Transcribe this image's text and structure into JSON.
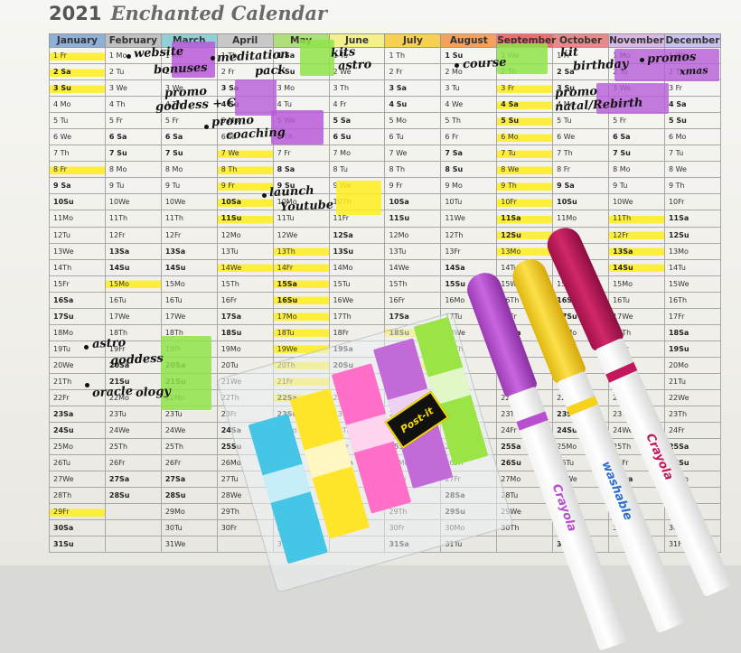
{
  "title": {
    "year": "2021",
    "name": "Enchanted Calendar"
  },
  "months": [
    {
      "label": "January",
      "color": "#8fb0d8"
    },
    {
      "label": "February",
      "color": "#c0c0c0"
    },
    {
      "label": "March",
      "color": "#8fd0d8"
    },
    {
      "label": "April",
      "color": "#c8c8c8"
    },
    {
      "label": "May",
      "color": "#aee07a"
    },
    {
      "label": "June",
      "color": "#f4f08a"
    },
    {
      "label": "July",
      "color": "#f7cf52"
    },
    {
      "label": "August",
      "color": "#f3a15c"
    },
    {
      "label": "September",
      "color": "#ef6d6d"
    },
    {
      "label": "October",
      "color": "#e88a8a"
    },
    {
      "label": "November",
      "color": "#d9b7e8"
    },
    {
      "label": "December",
      "color": "#c9c2f0"
    }
  ],
  "rows": [
    [
      "1 Fr",
      "1 Mo",
      "1 Mo",
      "1 Th",
      "1 Sa",
      "1 Tu",
      "1 Th",
      "1 Su",
      "1 We",
      "1 Fr",
      "1 Mo",
      "1 We"
    ],
    [
      "2 Sa",
      "2 Tu",
      "2 Tu",
      "2 Fr",
      "2 Su",
      "2 We",
      "2 Fr",
      "2 Mo",
      "2 Th",
      "2 Sa",
      "2 Tu",
      "2 Th"
    ],
    [
      "3 Su",
      "3 We",
      "3 We",
      "3 Sa",
      "3 Mo",
      "3 Th",
      "3 Sa",
      "3 Tu",
      "3 Fr",
      "3 Su",
      "3 We",
      "3 Fr"
    ],
    [
      "4 Mo",
      "4 Th",
      "4 Th",
      "4 Su",
      "4 Tu",
      "4 Fr",
      "4 Su",
      "4 We",
      "4 Sa",
      "4 Mo",
      "4 Th",
      "4 Sa"
    ],
    [
      "5 Tu",
      "5 Fr",
      "5 Fr",
      "5 Mo",
      "5 We",
      "5 Sa",
      "5 Mo",
      "5 Th",
      "5 Su",
      "5 Tu",
      "5 Fr",
      "5 Su"
    ],
    [
      "6 We",
      "6 Sa",
      "6 Sa",
      "6 Tu",
      "6 Th",
      "6 Su",
      "6 Tu",
      "6 Fr",
      "6 Mo",
      "6 We",
      "6 Sa",
      "6 Mo"
    ],
    [
      "7 Th",
      "7 Su",
      "7 Su",
      "7 We",
      "7 Fr",
      "7 Mo",
      "7 We",
      "7 Sa",
      "7 Tu",
      "7 Th",
      "7 Su",
      "7 Tu"
    ],
    [
      "8 Fr",
      "8 Mo",
      "8 Mo",
      "8 Th",
      "8 Sa",
      "8 Tu",
      "8 Th",
      "8 Su",
      "8 We",
      "8 Fr",
      "8 Mo",
      "8 We"
    ],
    [
      "9 Sa",
      "9 Tu",
      "9 Tu",
      "9 Fr",
      "9 Su",
      "9 We",
      "9 Fr",
      "9 Mo",
      "9 Th",
      "9 Sa",
      "9 Tu",
      "9 Th"
    ],
    [
      "10Su",
      "10We",
      "10We",
      "10Sa",
      "10Mo",
      "10Th",
      "10Sa",
      "10Tu",
      "10Fr",
      "10Su",
      "10We",
      "10Fr"
    ],
    [
      "11Mo",
      "11Th",
      "11Th",
      "11Su",
      "11Tu",
      "11Fr",
      "11Su",
      "11We",
      "11Sa",
      "11Mo",
      "11Th",
      "11Sa"
    ],
    [
      "12Tu",
      "12Fr",
      "12Fr",
      "12Mo",
      "12We",
      "12Sa",
      "12Mo",
      "12Th",
      "12Su",
      "12Tu",
      "12Fr",
      "12Su"
    ],
    [
      "13We",
      "13Sa",
      "13Sa",
      "13Tu",
      "13Th",
      "13Su",
      "13Tu",
      "13Fr",
      "13Mo",
      "13We",
      "13Sa",
      "13Mo"
    ],
    [
      "14Th",
      "14Su",
      "14Su",
      "14We",
      "14Fr",
      "14Mo",
      "14We",
      "14Sa",
      "14Tu",
      "14Th",
      "14Su",
      "14Tu"
    ],
    [
      "15Fr",
      "15Mo",
      "15Mo",
      "15Th",
      "15Sa",
      "15Tu",
      "15Th",
      "15Su",
      "15We",
      "15Fr",
      "15Mo",
      "15We"
    ],
    [
      "16Sa",
      "16Tu",
      "16Tu",
      "16Fr",
      "16Su",
      "16We",
      "16Fr",
      "16Mo",
      "16Th",
      "16Sa",
      "16Tu",
      "16Th"
    ],
    [
      "17Su",
      "17We",
      "17We",
      "17Sa",
      "17Mo",
      "17Th",
      "17Sa",
      "17Tu",
      "17Fr",
      "17Su",
      "17We",
      "17Fr"
    ],
    [
      "18Mo",
      "18Th",
      "18Th",
      "18Su",
      "18Tu",
      "18Fr",
      "18Su",
      "18We",
      "18Sa",
      "18Mo",
      "18Th",
      "18Sa"
    ],
    [
      "19Tu",
      "19Fr",
      "19Fr",
      "19Mo",
      "19We",
      "19Sa",
      "19Mo",
      "19Th",
      "19Su",
      "19Tu",
      "19Fr",
      "19Su"
    ],
    [
      "20We",
      "20Sa",
      "20Sa",
      "20Tu",
      "20Th",
      "20Su",
      "20Tu",
      "20Fr",
      "20Mo",
      "20We",
      "20Sa",
      "20Mo"
    ],
    [
      "21Th",
      "21Su",
      "21Su",
      "21We",
      "21Fr",
      "21Mo",
      "21We",
      "21Sa",
      "21Tu",
      "21Th",
      "21Su",
      "21Tu"
    ],
    [
      "22Fr",
      "22Mo",
      "22Mo",
      "22Th",
      "22Sa",
      "22Tu",
      "22Th",
      "22Su",
      "22We",
      "22Fr",
      "22Mo",
      "22We"
    ],
    [
      "23Sa",
      "23Tu",
      "23Tu",
      "23Fr",
      "23Su",
      "23We",
      "23Fr",
      "23Mo",
      "23Th",
      "23Sa",
      "23Tu",
      "23Th"
    ],
    [
      "24Su",
      "24We",
      "24We",
      "24Sa",
      "24Mo",
      "24Th",
      "24Sa",
      "24Tu",
      "24Fr",
      "24Su",
      "24We",
      "24Fr"
    ],
    [
      "25Mo",
      "25Th",
      "25Th",
      "25Su",
      "25Tu",
      "25Fr",
      "25Su",
      "25We",
      "25Sa",
      "25Mo",
      "25Th",
      "25Sa"
    ],
    [
      "26Tu",
      "26Fr",
      "26Fr",
      "26Mo",
      "26We",
      "26Sa",
      "26Mo",
      "26Th",
      "26Su",
      "26Tu",
      "26Fr",
      "26Su"
    ],
    [
      "27We",
      "27Sa",
      "27Sa",
      "27Tu",
      "27Th",
      "27Su",
      "27Tu",
      "27Fr",
      "27Mo",
      "27We",
      "27Sa",
      "27Mo"
    ],
    [
      "28Th",
      "28Su",
      "28Su",
      "28We",
      "28Fr",
      "28Mo",
      "28We",
      "28Sa",
      "28Tu",
      "28Th",
      "28Su",
      "28Tu"
    ],
    [
      "29Fr",
      "",
      "29Mo",
      "29Th",
      "29Sa",
      "29Tu",
      "29Th",
      "29Su",
      "29We",
      "29Fr",
      "29Mo",
      "29We"
    ],
    [
      "30Sa",
      "",
      "30Tu",
      "30Fr",
      "30Su",
      "30We",
      "30Fr",
      "30Mo",
      "30Th",
      "30Sa",
      "30Tu",
      "30Th"
    ],
    [
      "31Su",
      "",
      "31We",
      "",
      "31Mo",
      "",
      "31Sa",
      "31Tu",
      "",
      "31Su",
      "",
      "31Fr"
    ]
  ],
  "annotations": {
    "websites": "website",
    "bonuses": "bonuses",
    "meditation": "meditation",
    "pack": "pack",
    "kits": "kits",
    "astro_june": "astro",
    "course": "course",
    "kit": "kit",
    "birthday": "birthday",
    "promos": "promos",
    "xmas": "xmas",
    "promo_goddess": "promo",
    "goddess_c": "goddess + C",
    "promo_coaching": "promo",
    "coaching": "coaching",
    "promo_oct": "promo",
    "natal_rebirth": "natal/Rebirth",
    "launch": "launch",
    "youtube": "Youtube",
    "astro_goddess": "astro",
    "goddess": "goddess",
    "oracle": "oracle",
    "ology": "ology"
  },
  "colors": {
    "highlight_yellow": "#fff01e",
    "tab_purple": "#b75bd8",
    "tab_green": "#8fe34a",
    "flag_blue": "#45c6e6",
    "flag_yellow": "#ffe52a",
    "flag_pink": "#ff6fc8",
    "flag_purple": "#c36ad9",
    "flag_green": "#9be445",
    "marker_purple": "#b84ed0",
    "marker_yellow": "#f6d21a",
    "marker_magenta": "#c2185b"
  },
  "postit_logo": "Post-it",
  "marker_brand": "Crayola",
  "marker_washable": "washable"
}
